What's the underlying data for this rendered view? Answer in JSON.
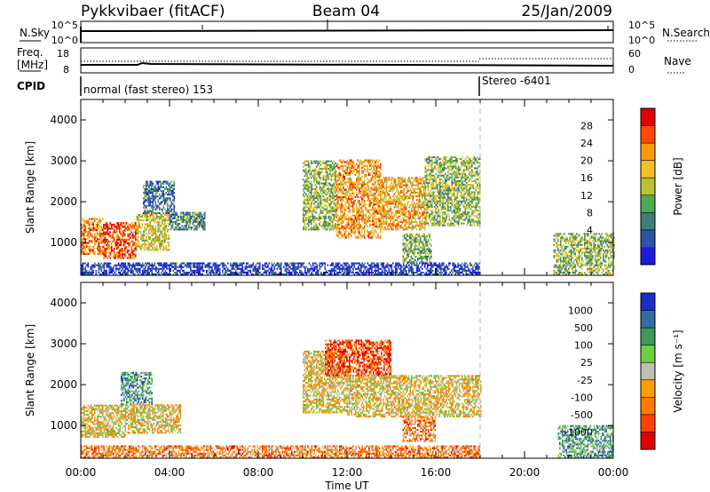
{
  "header": {
    "radar": "Pykkvibaer (fitACF)",
    "beam": "Beam 04",
    "date": "25/Jan/2009"
  },
  "top_strip": {
    "left_label": "N.Sky",
    "right_label": "N.Search",
    "left_ticks": [
      "10^5",
      "10^0"
    ],
    "right_ticks": [
      "10^5",
      "10^0"
    ]
  },
  "freq_strip": {
    "left_label_1": "Freq.",
    "left_label_2": "[MHz]",
    "right_label": "Nave",
    "left_ticks": [
      "18",
      "8"
    ],
    "right_ticks": [
      "60",
      "0"
    ]
  },
  "cpid_strip": {
    "label": "CPID",
    "segment_1": "normal (fast stereo) 153",
    "segment_2": "Stereo -6401"
  },
  "x_axis": {
    "label": "Time UT",
    "ticks": [
      "00:00",
      "04:00",
      "08:00",
      "12:00",
      "16:00",
      "20:00",
      "00:00"
    ]
  },
  "chart_data": [
    {
      "type": "heatmap",
      "title": "Power",
      "ylabel": "Slant Range [km]",
      "xlabel": "Time UT",
      "xlim": [
        0,
        24
      ],
      "ylim": [
        200,
        4500
      ],
      "yticks": [
        "1000",
        "2000",
        "3000",
        "4000"
      ],
      "colorbar": {
        "label": "Power [dB]",
        "ticks": [
          "28",
          "24",
          "20",
          "16",
          "12",
          "8",
          "4"
        ],
        "colors": [
          "#e00000",
          "#ff4a00",
          "#ff9a10",
          "#f0c020",
          "#b8c230",
          "#4caa50",
          "#3e7e76",
          "#2c52a6",
          "#1a1ae0"
        ]
      },
      "regions": [
        {
          "t0": 0.0,
          "t1": 1.0,
          "r0": 700,
          "r1": 1600,
          "level": 0.75
        },
        {
          "t0": 1.0,
          "t1": 2.5,
          "r0": 600,
          "r1": 1500,
          "level": 0.85
        },
        {
          "t0": 2.5,
          "t1": 4.0,
          "r0": 800,
          "r1": 1700,
          "level": 0.55
        },
        {
          "t0": 4.0,
          "t1": 5.6,
          "r0": 1300,
          "r1": 1750,
          "level": 0.3
        },
        {
          "t0": 2.8,
          "t1": 4.2,
          "r0": 1700,
          "r1": 2500,
          "level": 0.25
        },
        {
          "t0": 10.0,
          "t1": 11.5,
          "r0": 1300,
          "r1": 3000,
          "level": 0.45
        },
        {
          "t0": 11.5,
          "t1": 13.5,
          "r0": 1100,
          "r1": 3000,
          "level": 0.7
        },
        {
          "t0": 13.5,
          "t1": 15.5,
          "r0": 1300,
          "r1": 2600,
          "level": 0.65
        },
        {
          "t0": 15.5,
          "t1": 18.0,
          "r0": 1400,
          "r1": 3100,
          "level": 0.45
        },
        {
          "t0": 14.5,
          "t1": 15.8,
          "r0": 500,
          "r1": 1200,
          "level": 0.4
        },
        {
          "t0": 0.0,
          "t1": 18.0,
          "r0": 200,
          "r1": 500,
          "level": 0.1
        },
        {
          "t0": 21.3,
          "t1": 24.0,
          "r0": 200,
          "r1": 1200,
          "level": 0.45
        }
      ]
    },
    {
      "type": "heatmap",
      "title": "Velocity",
      "ylabel": "Slant Range [km]",
      "xlabel": "Time UT",
      "xlim": [
        0,
        24
      ],
      "ylim": [
        200,
        4500
      ],
      "yticks": [
        "1000",
        "2000",
        "3000",
        "4000"
      ],
      "colorbar": {
        "label": "Velocity [m s⁻¹]",
        "ticks": [
          "1000",
          "500",
          "100",
          "25",
          "-25",
          "-100",
          "-500",
          "-1000"
        ],
        "colors": [
          "#1a2ec8",
          "#2f6ea0",
          "#3f9a5a",
          "#6cd040",
          "#bebeb0",
          "#ffa000",
          "#ff7a00",
          "#ff4000",
          "#e00000"
        ]
      },
      "regions": [
        {
          "t0": 0.0,
          "t1": 2.0,
          "r0": 700,
          "r1": 1500,
          "level": 0.45
        },
        {
          "t0": 1.8,
          "t1": 3.2,
          "r0": 1500,
          "r1": 2300,
          "level": 0.7
        },
        {
          "t0": 2.0,
          "t1": 4.5,
          "r0": 800,
          "r1": 1500,
          "level": 0.45
        },
        {
          "t0": 10.0,
          "t1": 12.0,
          "r0": 1300,
          "r1": 2800,
          "level": 0.45
        },
        {
          "t0": 11.0,
          "t1": 14.0,
          "r0": 2200,
          "r1": 3100,
          "level": 0.15
        },
        {
          "t0": 12.0,
          "t1": 18.0,
          "r0": 1200,
          "r1": 2200,
          "level": 0.45
        },
        {
          "t0": 14.5,
          "t1": 16.0,
          "r0": 600,
          "r1": 1200,
          "level": 0.3
        },
        {
          "t0": 0.0,
          "t1": 18.0,
          "r0": 200,
          "r1": 500,
          "level": 0.3
        },
        {
          "t0": 21.5,
          "t1": 24.0,
          "r0": 200,
          "r1": 1000,
          "level": 0.7
        }
      ]
    }
  ]
}
